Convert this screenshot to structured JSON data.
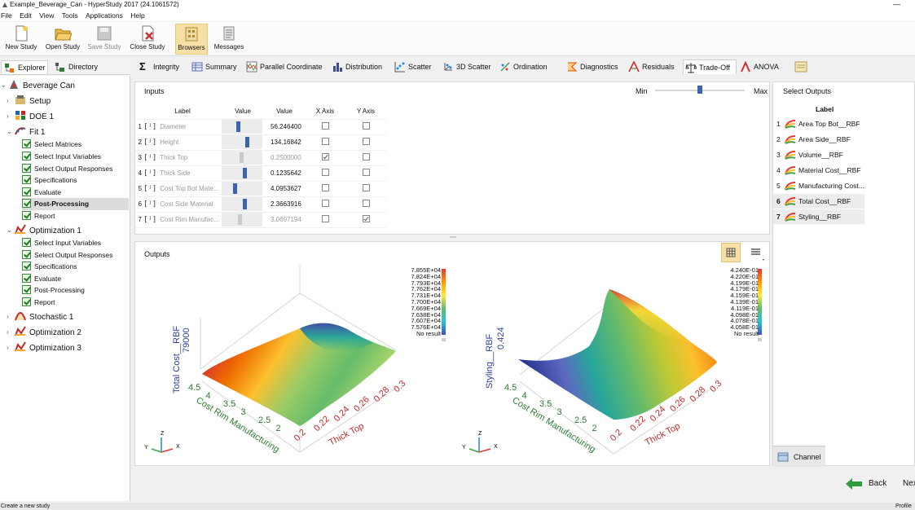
{
  "window": {
    "title": "Example_Beverage_Can - HyperStudy 2017 (24.1061572)"
  },
  "menu": [
    "File",
    "Edit",
    "View",
    "Tools",
    "Applications",
    "Help"
  ],
  "toolbar": [
    {
      "label": "New Study",
      "icon": "new-study-icon",
      "active": false,
      "enabled": true
    },
    {
      "label": "Open Study",
      "icon": "open-folder-icon",
      "active": false,
      "enabled": true
    },
    {
      "label": "Save Study",
      "icon": "save-disk-icon",
      "active": false,
      "enabled": false
    },
    {
      "label": "Close Study",
      "icon": "close-study-icon",
      "active": false,
      "enabled": true
    },
    {
      "label": "Browsers",
      "icon": "browsers-icon",
      "active": true,
      "enabled": true
    },
    {
      "label": "Messages",
      "icon": "messages-icon",
      "active": false,
      "enabled": true
    }
  ],
  "left_tabs": [
    "Explorer",
    "Directory"
  ],
  "tree": {
    "root": "Beverage Can",
    "setup": "Setup",
    "doe": "DOE 1",
    "fit": "Fit 1",
    "fit_steps": [
      "Select Matrices",
      "Select Input Variables",
      "Select Output Responses",
      "Specifications",
      "Evaluate",
      "Post-Processing",
      "Report"
    ],
    "optimization1": "Optimization 1",
    "opt_steps": [
      "Select Input Variables",
      "Select Output Responses",
      "Specifications",
      "Evaluate",
      "Post-Processing",
      "Report"
    ],
    "stochastic": "Stochastic 1",
    "optimization2": "Optimization 2",
    "optimization3": "Optimization 3"
  },
  "tabs": [
    "Integrity",
    "Summary",
    "Parallel Coordinate",
    "Distribution",
    "Scatter",
    "3D Scatter",
    "Ordination",
    "Diagnostics",
    "Residuals",
    "Trade-Off",
    "ANOVA"
  ],
  "active_tab": "Trade-Off",
  "inputs": {
    "title": "Inputs",
    "min_label": "Min",
    "max_label": "Max",
    "slider_level": 0.5,
    "columns": [
      "Label",
      "Value",
      "Value",
      "X Axis",
      "Y Axis"
    ],
    "rows": [
      {
        "n": "1",
        "label": "Diameter",
        "value": "56.246400",
        "level": 0.4,
        "x": false,
        "y": false,
        "active": true
      },
      {
        "n": "2",
        "label": "Height",
        "value": "134.16842",
        "level": 0.65,
        "x": false,
        "y": false,
        "active": true
      },
      {
        "n": "3",
        "label": "Thick Top",
        "value": "0.2500000",
        "level": 0.5,
        "x": true,
        "y": false,
        "active": false
      },
      {
        "n": "4",
        "label": "Thick Side",
        "value": "0.1235642",
        "level": 0.6,
        "x": false,
        "y": false,
        "active": true
      },
      {
        "n": "5",
        "label": "Cost Top Bot Mate...",
        "value": "4.0953627",
        "level": 0.32,
        "x": false,
        "y": false,
        "active": true
      },
      {
        "n": "6",
        "label": "Cost Side Material",
        "value": "2.3663916",
        "level": 0.6,
        "x": false,
        "y": false,
        "active": true
      },
      {
        "n": "7",
        "label": "Cost Rim Manufac...",
        "value": "3.0697194",
        "level": 0.45,
        "x": false,
        "y": true,
        "active": false
      }
    ]
  },
  "outputs_panel": {
    "title": "Outputs",
    "plots": [
      {
        "zlabel": "Total Cost__RBF",
        "ztick": "79000",
        "xlabel": "Thick Top",
        "ylabel": "Cost Rim Manufacturing",
        "xticks": [
          "0.2",
          "0.22",
          "0.24",
          "0.26",
          "0.28",
          "0.3"
        ],
        "yticks": [
          "4.5",
          "4",
          "3.5",
          "3",
          "2.5",
          "2"
        ],
        "legend": [
          "7.855E+04",
          "7.824E+04",
          "7.793E+04",
          "7.762E+04",
          "7.731E+04",
          "7.700E+04",
          "7.669E+04",
          "7.638E+04",
          "7.607E+04",
          "7.576E+04"
        ],
        "no_result": "No result"
      },
      {
        "zlabel": "Styling__RBF",
        "ztick": "0.424",
        "xlabel": "Thick Top",
        "ylabel": "Cost Rim Manufacturing",
        "xticks": [
          "0.2",
          "0.22",
          "0.24",
          "0.26",
          "0.28",
          "0.3"
        ],
        "yticks": [
          "4.5",
          "4",
          "3.5",
          "3",
          "2.5",
          "2"
        ],
        "legend": [
          "4.240E-01",
          "4.220E-01",
          "4.199E-01",
          "4.179E-01",
          "4.159E-01",
          "4.139E-01",
          "4.119E-01",
          "4.098E-01",
          "4.078E-01",
          "4.058E-01"
        ],
        "no_result": "No result"
      }
    ],
    "axes": [
      "Z",
      "Y",
      "X"
    ]
  },
  "select_outputs": {
    "title": "Select Outputs",
    "column": "Label",
    "rows": [
      {
        "n": "1",
        "label": "Area Top Bot__RBF",
        "selected": false
      },
      {
        "n": "2",
        "label": "Area Side__RBF",
        "selected": false
      },
      {
        "n": "3",
        "label": "Volume__RBF",
        "selected": false
      },
      {
        "n": "4",
        "label": "Material Cost__RBF",
        "selected": false
      },
      {
        "n": "5",
        "label": "Manufacturing Cost...",
        "selected": false
      },
      {
        "n": "6",
        "label": "Total Cost__RBF",
        "selected": true
      },
      {
        "n": "7",
        "label": "Styling__RBF",
        "selected": true
      }
    ],
    "channel": "Channel"
  },
  "nav": {
    "back": "Back",
    "next": "Nex"
  },
  "status": {
    "left": "Create a new study",
    "right": "Profile"
  },
  "colors": {
    "accent": "#f7e0a6",
    "bar": "#3a63b0",
    "check": "#1f7a1f"
  }
}
